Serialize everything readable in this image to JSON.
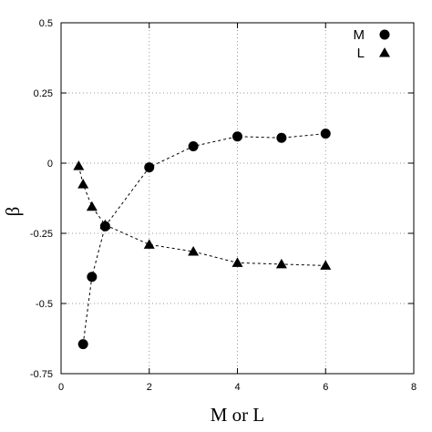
{
  "chart_data": {
    "type": "line",
    "xlabel": "M or L",
    "ylabel": "β",
    "xlim": [
      0,
      8
    ],
    "ylim": [
      -0.75,
      0.5
    ],
    "x_ticks": [
      0,
      2,
      4,
      6,
      8
    ],
    "y_ticks": [
      -0.75,
      -0.5,
      -0.25,
      0,
      0.25,
      0.5
    ],
    "x_tick_labels": [
      "0",
      "2",
      "4",
      "6",
      "8"
    ],
    "y_tick_labels": [
      "-0.75",
      "-0.5",
      "-0.25",
      "0",
      "0.25",
      "0.5"
    ],
    "grid": true,
    "legend_position": "top-right",
    "series": [
      {
        "name": "M",
        "marker": "circle",
        "x": [
          0.5,
          0.7,
          1.0,
          2.0,
          3.0,
          4.0,
          5.0,
          6.0
        ],
        "y": [
          -0.645,
          -0.405,
          -0.225,
          -0.015,
          0.06,
          0.095,
          0.09,
          0.105
        ]
      },
      {
        "name": "L",
        "marker": "triangle",
        "x": [
          0.4,
          0.5,
          0.7,
          1.0,
          2.0,
          3.0,
          4.0,
          5.0,
          6.0
        ],
        "y": [
          -0.01,
          -0.075,
          -0.155,
          -0.22,
          -0.29,
          -0.315,
          -0.355,
          -0.36,
          -0.365
        ]
      }
    ]
  }
}
